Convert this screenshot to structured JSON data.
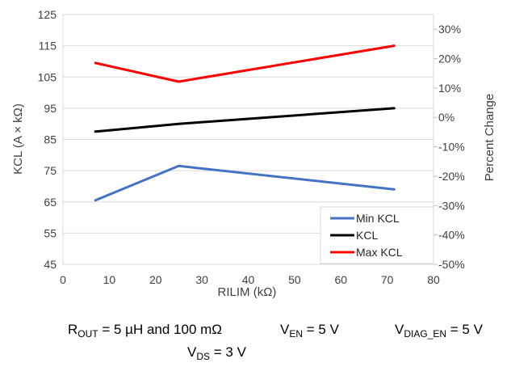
{
  "chart_data": {
    "type": "line",
    "xlabel": "RILIM (kΩ)",
    "ylabel": "KCL (A × kΩ)",
    "y2label": "Percent Change",
    "xlim": [
      0,
      80
    ],
    "ylim": [
      45,
      125
    ],
    "y2lim": [
      -50,
      35
    ],
    "x_ticks": [
      "0",
      "10",
      "20",
      "30",
      "40",
      "50",
      "60",
      "70",
      "80"
    ],
    "y_ticks": [
      "45",
      "55",
      "65",
      "75",
      "85",
      "95",
      "105",
      "115",
      "125"
    ],
    "y2_ticks": [
      "-50%",
      "-40%",
      "-30%",
      "-20%",
      "-10%",
      "0%",
      "10%",
      "20%",
      "30%"
    ],
    "grid": "horizontal",
    "legend_position": "bottom-right",
    "series": [
      {
        "name": "Min KCL",
        "color": "#4472C4",
        "x": [
          7,
          25,
          71.5
        ],
        "y": [
          65.5,
          76.5,
          69
        ]
      },
      {
        "name": "KCL",
        "color": "#000000",
        "x": [
          7,
          25,
          71.5
        ],
        "y": [
          87.5,
          90,
          95
        ]
      },
      {
        "name": "Max KCL",
        "color": "#FF0000",
        "x": [
          7,
          25,
          71.5
        ],
        "y": [
          109.5,
          103.5,
          115
        ]
      }
    ]
  },
  "caption": {
    "line1_a": {
      "prefix": "R",
      "sub": "OUT",
      "suffix": " = 5 µH and 100 mΩ"
    },
    "line1_b": {
      "prefix": "V",
      "sub": "EN",
      "suffix": " = 5 V"
    },
    "line1_c": {
      "prefix": "V",
      "sub": "DIAG_EN",
      "suffix": " = 5 V"
    },
    "line2": {
      "prefix": "V",
      "sub": "DS",
      "suffix": " = 3 V"
    }
  }
}
